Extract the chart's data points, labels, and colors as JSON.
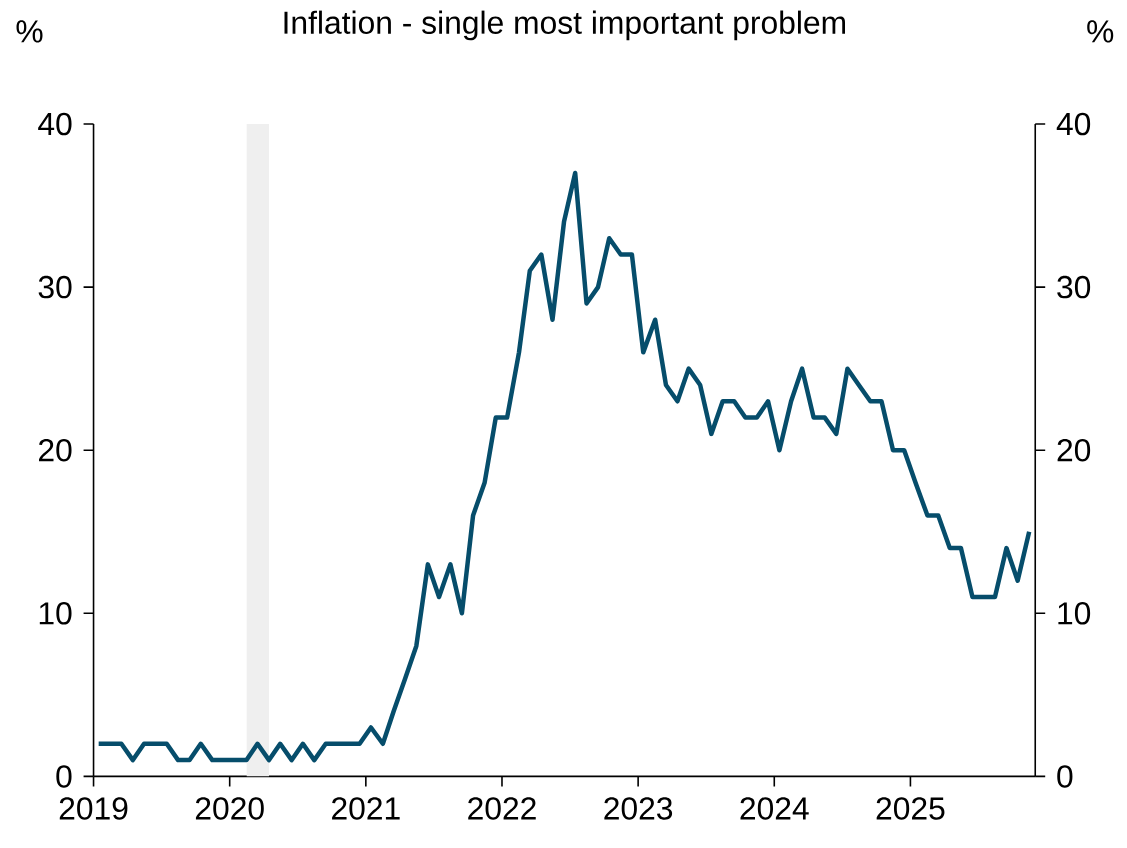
{
  "chart_data": {
    "type": "line",
    "title": "Inflation - single most important problem",
    "ylabel": "%",
    "y2label": "%",
    "x": [
      "2019-01-15",
      "2019-02-15",
      "2019-03-15",
      "2019-04-15",
      "2019-05-15",
      "2019-06-15",
      "2019-07-15",
      "2019-08-15",
      "2019-09-15",
      "2019-10-15",
      "2019-11-15",
      "2019-12-15",
      "2020-01-15",
      "2020-02-15",
      "2020-03-15",
      "2020-04-15",
      "2020-05-15",
      "2020-06-15",
      "2020-07-15",
      "2020-08-15",
      "2020-09-15",
      "2020-10-15",
      "2020-11-15",
      "2020-12-15",
      "2021-01-15",
      "2021-02-15",
      "2021-03-15",
      "2021-04-15",
      "2021-05-15",
      "2021-06-15",
      "2021-07-15",
      "2021-08-15",
      "2021-09-15",
      "2021-10-15",
      "2021-11-15",
      "2021-12-15",
      "2022-01-15",
      "2022-02-15",
      "2022-03-15",
      "2022-04-15",
      "2022-05-15",
      "2022-06-15",
      "2022-07-15",
      "2022-08-15",
      "2022-09-15",
      "2022-10-15",
      "2022-11-15",
      "2022-12-15",
      "2023-01-15",
      "2023-02-15",
      "2023-03-15",
      "2023-04-15",
      "2023-05-15",
      "2023-06-15",
      "2023-07-15",
      "2023-08-15",
      "2023-09-15",
      "2023-10-15",
      "2023-11-15",
      "2023-12-15",
      "2024-01-15",
      "2024-02-15",
      "2024-03-15",
      "2024-04-15",
      "2024-05-15",
      "2024-06-15",
      "2024-07-15",
      "2024-08-15",
      "2024-09-15",
      "2024-10-15",
      "2024-11-15",
      "2024-12-15",
      "2025-01-15",
      "2025-02-15",
      "2025-03-15",
      "2025-04-15",
      "2025-05-15",
      "2025-06-15",
      "2025-07-15",
      "2025-08-15",
      "2025-09-15",
      "2025-10-15",
      "2025-11-15"
    ],
    "values": [
      2,
      2,
      2,
      1,
      2,
      2,
      2,
      1,
      1,
      2,
      1,
      1,
      1,
      1,
      2,
      1,
      2,
      1,
      2,
      1,
      2,
      2,
      2,
      2,
      3,
      2,
      4,
      6,
      8,
      13,
      11,
      13,
      10,
      16,
      18,
      22,
      22,
      26,
      31,
      32,
      28,
      34,
      37,
      29,
      30,
      33,
      32,
      32,
      26,
      28,
      24,
      23,
      25,
      24,
      21,
      23,
      23,
      22,
      22,
      23,
      20,
      23,
      25,
      22,
      22,
      21,
      25,
      24,
      23,
      23,
      20,
      20,
      18,
      16,
      16,
      14,
      14,
      11,
      11,
      11,
      14,
      12,
      15
    ],
    "color": "#064d6b",
    "marker": "none",
    "line_style": "solid",
    "xlim": [
      "2019-01-01",
      "2025-12-01"
    ],
    "xticks": [
      "2019",
      "2020",
      "2021",
      "2022",
      "2023",
      "2024",
      "2025"
    ],
    "ylim": [
      0,
      40
    ],
    "yticks": [
      0,
      10,
      20,
      30,
      40
    ],
    "y2lim": [
      0,
      40
    ],
    "y2ticks": [
      0,
      10,
      20,
      30,
      40
    ],
    "bands": [
      {
        "axis": "x",
        "from": "2020-02-15",
        "to": "2020-04-15",
        "color": "#efefef"
      }
    ]
  }
}
